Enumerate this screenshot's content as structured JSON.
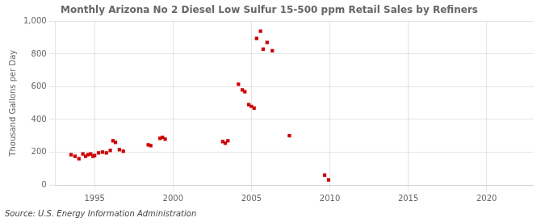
{
  "chart_data": {
    "type": "scatter",
    "title": "Monthly Arizona No 2 Diesel Low Sulfur 15-500 ppm Retail Sales by Refiners",
    "ylabel": "Thousand Gallons per Day",
    "source": "Source: U.S. Energy Information Administration",
    "color": "#cc0000",
    "marker": "square",
    "x": [
      1993.5,
      1993.75,
      1994.0,
      1994.25,
      1994.42,
      1994.58,
      1994.75,
      1994.9,
      1995.0,
      1995.25,
      1995.5,
      1995.75,
      1996.0,
      1996.17,
      1996.33,
      1996.58,
      1996.83,
      1998.42,
      1998.58,
      1999.17,
      1999.33,
      1999.5,
      2003.17,
      2003.33,
      2003.5,
      2004.17,
      2004.42,
      2004.58,
      2004.83,
      2005.0,
      2005.17,
      2005.33,
      2005.58,
      2005.75,
      2006.0,
      2006.33,
      2007.42,
      2009.67,
      2009.92
    ],
    "values": [
      185,
      175,
      160,
      190,
      175,
      185,
      190,
      175,
      180,
      195,
      200,
      195,
      210,
      270,
      260,
      215,
      205,
      245,
      240,
      285,
      290,
      280,
      265,
      255,
      270,
      615,
      580,
      570,
      490,
      480,
      470,
      895,
      940,
      830,
      870,
      820,
      300,
      60,
      30
    ],
    "xlim": [
      1992.5,
      2023
    ],
    "ylim": [
      0,
      1000
    ],
    "xticks": [
      1995,
      2000,
      2005,
      2010,
      2015,
      2020
    ],
    "yticks": [
      0,
      200,
      400,
      600,
      800,
      {
        "value": 1000,
        "label": "1,000"
      }
    ],
    "grid": true
  }
}
